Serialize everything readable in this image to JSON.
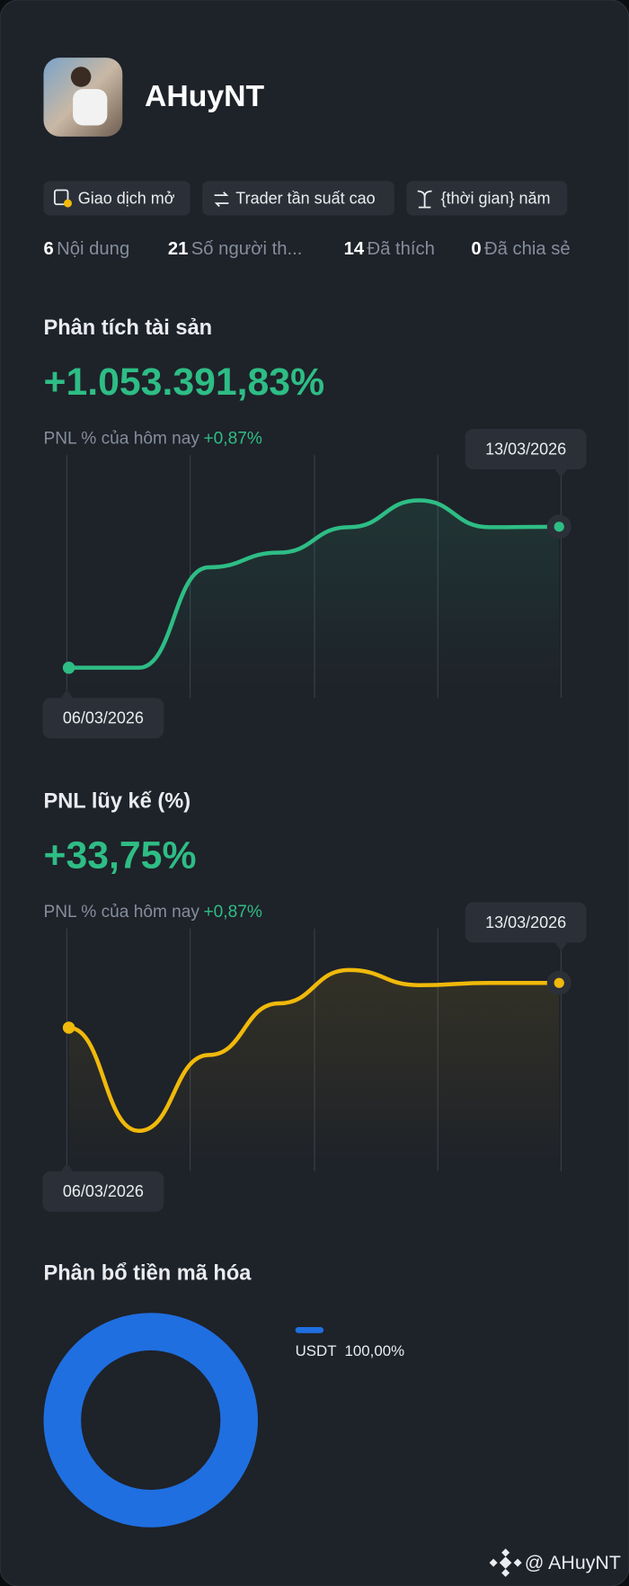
{
  "profile": {
    "name": "AHuyNT",
    "tags": [
      "Giao dịch mở",
      "Trader tần suất cao",
      "{thời gian} năm"
    ],
    "stats": [
      {
        "value": "6",
        "label": "Nội dung"
      },
      {
        "value": "21",
        "label": "Số người th..."
      },
      {
        "value": "14",
        "label": "Đã thích"
      },
      {
        "value": "0",
        "label": "Đã chia sẻ"
      }
    ]
  },
  "chart_data": [
    {
      "type": "line",
      "title": "Phân tích tài sản",
      "headline": "+1.053.391,83%",
      "subtitle": "PNL % của hôm nay",
      "subtitle_value": "+0,87%",
      "categories": [
        "06/03/2026",
        null,
        null,
        null,
        null,
        null,
        null,
        "13/03/2026"
      ],
      "values": [
        0,
        0,
        750000,
        860000,
        1050000,
        1250000,
        1050000,
        1053391.83
      ],
      "color": "#2ebd85",
      "ylim": [
        -150000,
        1550000
      ]
    },
    {
      "type": "line",
      "title": "PNL lũy kế (%)",
      "headline": "+33,75%",
      "subtitle": "PNL % của hôm nay",
      "subtitle_value": "+0,87%",
      "categories": [
        "06/03/2026",
        null,
        null,
        null,
        null,
        null,
        null,
        "13/03/2026"
      ],
      "values": [
        19,
        -15,
        10,
        27,
        38,
        33,
        33.75,
        33.75
      ],
      "color": "#f0b90b",
      "ylim": [
        -25,
        50
      ]
    },
    {
      "type": "pie",
      "title": "Phân bổ tiền mã hóa",
      "categories": [
        "USDT"
      ],
      "values": [
        100
      ],
      "value_labels": [
        "100,00%"
      ],
      "colors": [
        "#1f6fe0"
      ]
    }
  ],
  "footer": "@ AHuyNT"
}
